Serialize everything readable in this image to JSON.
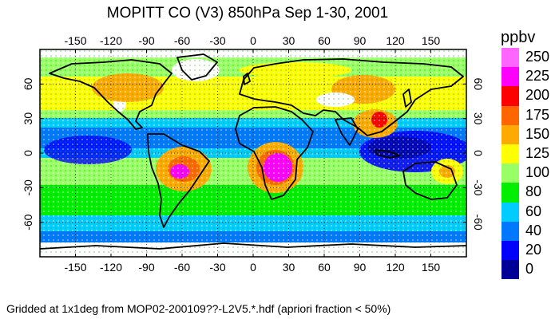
{
  "title": "MOPITT CO (V3) 850hPa Sep 1-30, 2001",
  "footer": "Gridded at 1x1deg from MOP02-200109??-L2V5.*.hdf (apriori fraction < 50%)",
  "legend": {
    "unit": "ppbv",
    "items": [
      {
        "label": "250",
        "color": "#ff66ff"
      },
      {
        "label": "225",
        "color": "#ff00ff"
      },
      {
        "label": "200",
        "color": "#ff0000"
      },
      {
        "label": "175",
        "color": "#ff6600"
      },
      {
        "label": "150",
        "color": "#ffaa00"
      },
      {
        "label": "125",
        "color": "#ffff00"
      },
      {
        "label": "100",
        "color": "#99ff66"
      },
      {
        "label": "80",
        "color": "#00ee00"
      },
      {
        "label": "60",
        "color": "#00ccff"
      },
      {
        "label": "40",
        "color": "#0077ff"
      },
      {
        "label": "20",
        "color": "#0000ff"
      },
      {
        "label": "0",
        "color": "#000099"
      }
    ]
  },
  "axes": {
    "lon_ticks": [
      "-150",
      "-120",
      "-90",
      "-60",
      "-30",
      "0",
      "30",
      "60",
      "90",
      "120",
      "150"
    ],
    "lat_ticks": [
      "60",
      "30",
      "0",
      "-30",
      "-60"
    ],
    "lon_range": [
      -180,
      180
    ],
    "lat_range": [
      -90,
      90
    ]
  }
}
